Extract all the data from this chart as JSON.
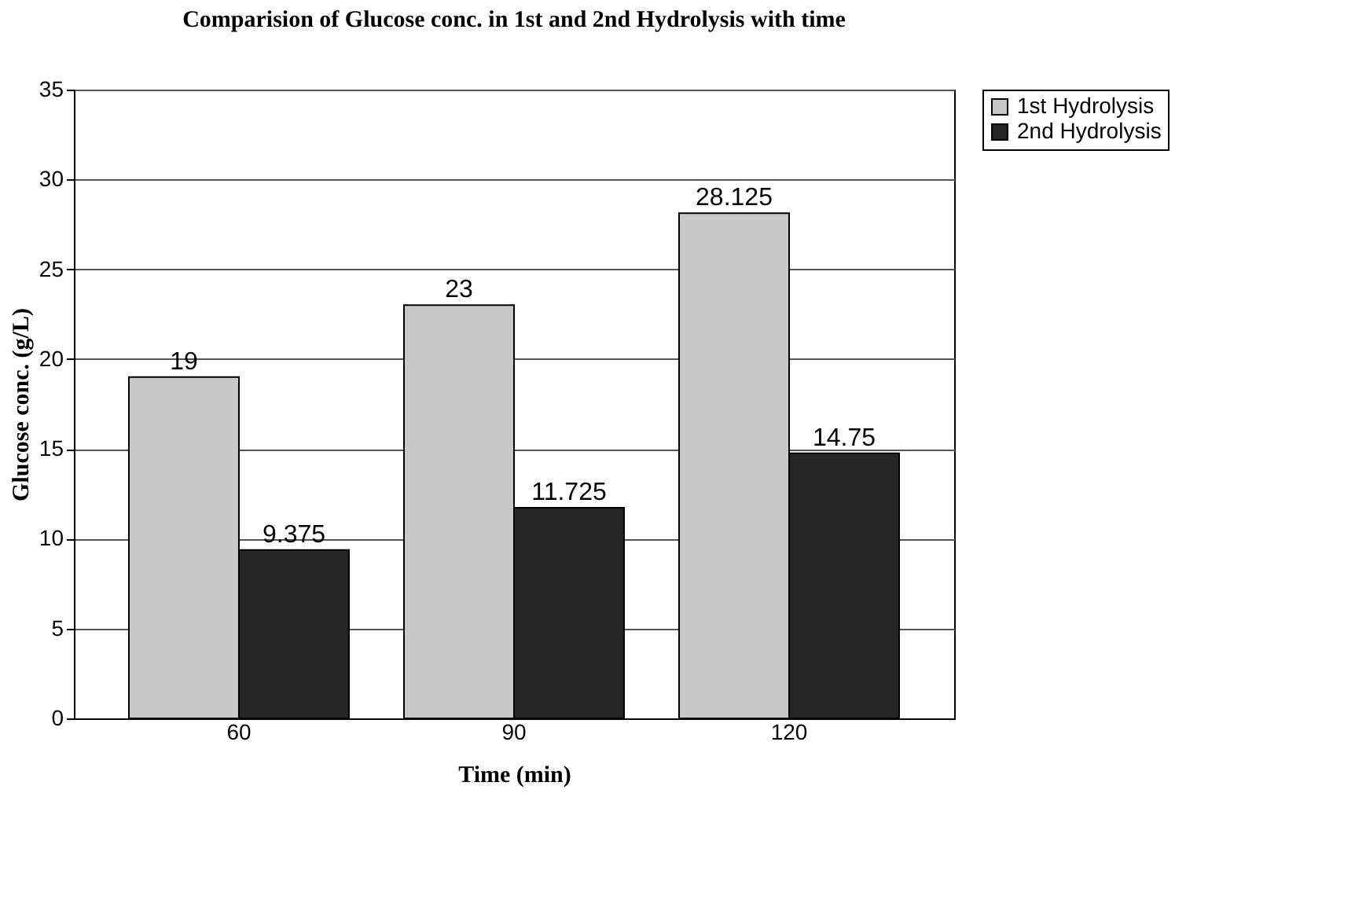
{
  "chart_data": {
    "type": "bar",
    "title": "Comparision of Glucose conc. in 1st and 2nd Hydrolysis with time",
    "xlabel": "Time (min)",
    "ylabel": "Glucose conc. (g/L)",
    "categories": [
      "60",
      "90",
      "120"
    ],
    "series": [
      {
        "name": "1st Hydrolysis",
        "color": "#c8c8c8",
        "values": [
          19,
          23,
          28.125
        ]
      },
      {
        "name": "2nd Hydrolysis",
        "color": "#262626",
        "values": [
          9.375,
          11.725,
          14.75
        ]
      }
    ],
    "ylim": [
      0,
      35
    ],
    "yticks": [
      0,
      5,
      10,
      15,
      20,
      25,
      30,
      35
    ],
    "grid": "y",
    "legend": "right",
    "data_labels": true
  }
}
